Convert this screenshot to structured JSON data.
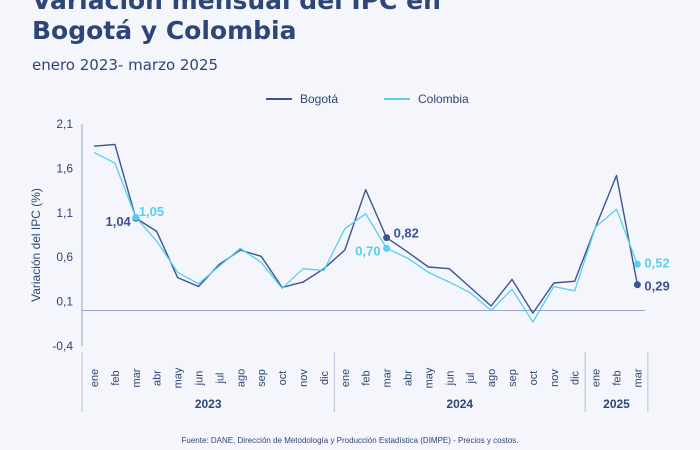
{
  "title_line1": "Variación mensual del IPC en",
  "title_line2": "Bogotá y Colombia",
  "subtitle": "enero 2023- marzo 2025",
  "footer": "Fuente: DANE, Dirección de Metodología y Producción Estadística (DIMPE) - Precios y costos.",
  "colors": {
    "bogota": "#3b5492",
    "colombia": "#58cfee",
    "text": "#2e4677",
    "background": "#f4f6fb"
  },
  "chart_data": {
    "type": "line",
    "ylabel": "Variación del IPC (%)",
    "xlabel": "",
    "ylim": [
      -0.4,
      2.1
    ],
    "yticks": [
      "2,1",
      "1,6",
      "1,1",
      "0,6",
      "0,1",
      "-0,4"
    ],
    "grid": false,
    "legend_position": "top-center",
    "categories": [
      "ene",
      "feb",
      "mar",
      "abr",
      "may",
      "jun",
      "jul",
      "ago",
      "sep",
      "oct",
      "nov",
      "dic",
      "ene",
      "feb",
      "mar",
      "abr",
      "may",
      "jun",
      "jul",
      "ago",
      "sep",
      "oct",
      "nov",
      "dic",
      "ene",
      "feb",
      "mar"
    ],
    "year_groups": [
      {
        "label": "2023",
        "count": 12
      },
      {
        "label": "2024",
        "count": 12
      },
      {
        "label": "2025",
        "count": 3
      }
    ],
    "series": [
      {
        "name": "Bogotá",
        "color": "#3b5492",
        "values": [
          1.85,
          1.87,
          1.04,
          0.89,
          0.37,
          0.27,
          0.52,
          0.68,
          0.61,
          0.26,
          0.32,
          0.47,
          0.68,
          1.36,
          0.82,
          0.66,
          0.49,
          0.47,
          0.26,
          0.05,
          0.35,
          -0.03,
          0.31,
          0.33,
          0.94,
          1.52,
          0.29
        ]
      },
      {
        "name": "Colombia",
        "color": "#58cfee",
        "values": [
          1.78,
          1.66,
          1.05,
          0.78,
          0.43,
          0.3,
          0.5,
          0.7,
          0.54,
          0.25,
          0.47,
          0.45,
          0.92,
          1.09,
          0.7,
          0.59,
          0.43,
          0.32,
          0.2,
          0.0,
          0.24,
          -0.13,
          0.27,
          0.22,
          0.94,
          1.14,
          0.52
        ]
      }
    ],
    "annotations": [
      {
        "series": 0,
        "index": 2,
        "label": "1,04"
      },
      {
        "series": 1,
        "index": 2,
        "label": "1,05"
      },
      {
        "series": 0,
        "index": 14,
        "label": "0,82"
      },
      {
        "series": 1,
        "index": 14,
        "label": "0,70"
      },
      {
        "series": 1,
        "index": 26,
        "label": "0,52"
      },
      {
        "series": 0,
        "index": 26,
        "label": "0,29"
      }
    ]
  }
}
